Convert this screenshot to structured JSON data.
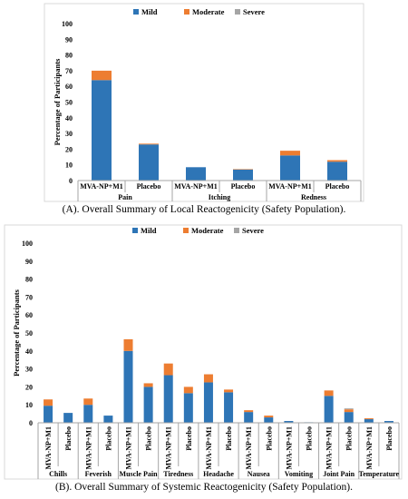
{
  "colors": {
    "mild": "#2E75B6",
    "moderate": "#ED7D31",
    "severe": "#A5A5A5",
    "axis": "#A6A6A6",
    "frame": "#D9D9D9"
  },
  "chart_data": [
    {
      "type": "bar",
      "stacked": true,
      "caption": "(A). Overall Summary of Local Reactogenicity (Safety Population).",
      "ylabel": "Percentage of Participants",
      "ylim": [
        0,
        100
      ],
      "yticks": [
        0,
        10,
        20,
        30,
        40,
        50,
        60,
        70,
        80,
        90,
        100
      ],
      "legend_position": "top",
      "grid": false,
      "groups": [
        "Pain",
        "Itching",
        "Redness"
      ],
      "categories": [
        "MVA-NP+M1",
        "Placebo",
        "MVA-NP+M1",
        "Placebo",
        "MVA-NP+M1",
        "Placebo"
      ],
      "series": [
        {
          "name": "Mild",
          "values": [
            64,
            23,
            8.5,
            7,
            16,
            12
          ]
        },
        {
          "name": "Moderate",
          "values": [
            6,
            0.5,
            0,
            0.3,
            3,
            1
          ]
        },
        {
          "name": "Severe",
          "values": [
            0,
            0,
            0,
            0,
            0,
            0
          ]
        }
      ]
    },
    {
      "type": "bar",
      "stacked": true,
      "caption": "(B). Overall Summary of Systemic Reactogenicity (Safety Population).",
      "ylabel": "Percentage of Participants",
      "ylim": [
        0,
        100
      ],
      "yticks": [
        0,
        10,
        20,
        30,
        40,
        50,
        60,
        70,
        80,
        90,
        100
      ],
      "legend_position": "top",
      "grid": false,
      "groups": [
        "Chills",
        "Feverish",
        "Muscle Pain",
        "Tiredness",
        "Headache",
        "Nausea",
        "Vomiting",
        "Joint Pain",
        "Temperature"
      ],
      "categories": [
        "MVA-NP+M1",
        "Placebo",
        "MVA-NP+M1",
        "Placebo",
        "MVA-NP+M1",
        "Placebo",
        "MVA-NP+M1",
        "Placebo",
        "MVA-NP+M1",
        "Placebo",
        "MVA-NP+M1",
        "Placebo",
        "MVA-NP+M1",
        "Placebo",
        "MVA-NP+M1",
        "Placebo",
        "MVA-NP+M1",
        "Placebo"
      ],
      "series": [
        {
          "name": "Mild",
          "values": [
            9.5,
            5.5,
            10,
            4,
            40,
            20,
            26.5,
            16.5,
            22.5,
            17,
            6,
            3,
            1,
            0.3,
            15,
            6,
            2,
            1
          ]
        },
        {
          "name": "Moderate",
          "values": [
            3.5,
            0,
            3.5,
            0,
            6.5,
            2,
            6.5,
            3.5,
            4.5,
            1.5,
            1,
            1,
            0,
            0,
            3,
            1.5,
            0.5,
            0
          ]
        },
        {
          "name": "Severe",
          "values": [
            0,
            0,
            0,
            0,
            0,
            0,
            0,
            0,
            0,
            0,
            0,
            0,
            0,
            0,
            0,
            0.5,
            0,
            0
          ]
        }
      ]
    }
  ]
}
